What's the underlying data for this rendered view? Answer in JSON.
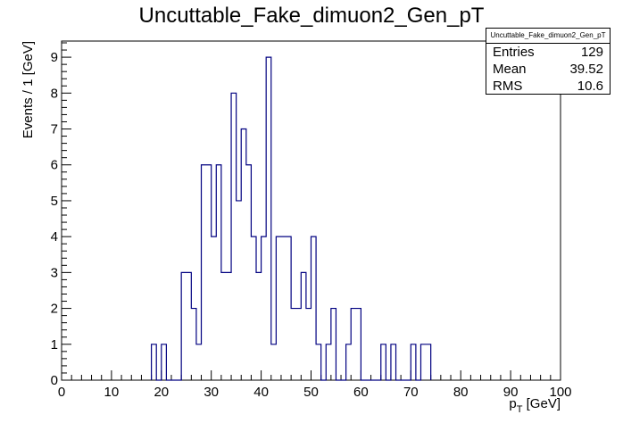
{
  "chart_data": {
    "type": "histogram",
    "title": "Uncuttable_Fake_dimuon2_Gen_pT",
    "xlabel": "p_T [GeV]",
    "ylabel": "Events / 1 [GeV]",
    "xlim": [
      0,
      100
    ],
    "ylim": [
      0,
      9.45
    ],
    "bin_width": 1,
    "x_ticks": [
      0,
      10,
      20,
      30,
      40,
      50,
      60,
      70,
      80,
      90,
      100
    ],
    "y_ticks": [
      0,
      1,
      2,
      3,
      4,
      5,
      6,
      7,
      8,
      9
    ],
    "bin_low_edges": [
      18,
      19,
      20,
      21,
      22,
      23,
      24,
      25,
      26,
      27,
      28,
      29,
      30,
      31,
      32,
      33,
      34,
      35,
      36,
      37,
      38,
      39,
      40,
      41,
      42,
      43,
      44,
      45,
      46,
      47,
      48,
      49,
      50,
      51,
      52,
      53,
      54,
      55,
      56,
      57,
      58,
      59,
      60,
      61,
      62,
      63,
      64,
      65,
      66,
      67,
      68,
      69,
      70,
      71,
      72,
      73
    ],
    "counts": [
      1,
      0,
      1,
      0,
      0,
      0,
      3,
      3,
      2,
      1,
      6,
      6,
      4,
      6,
      3,
      3,
      8,
      5,
      7,
      6,
      4,
      3,
      4,
      9,
      1,
      4,
      4,
      4,
      2,
      2,
      3,
      2,
      4,
      1,
      0,
      1,
      2,
      0,
      0,
      1,
      2,
      2,
      0,
      0,
      0,
      0,
      1,
      0,
      1,
      0,
      0,
      0,
      1,
      0,
      1,
      1
    ],
    "line_color": "#000080",
    "stats": {
      "name": "Uncuttable_Fake_dimuon2_Gen_pT",
      "entries_label": "Entries",
      "entries": "129",
      "mean_label": "Mean",
      "mean": "39.52",
      "rms_label": "RMS",
      "rms": "10.6"
    }
  }
}
